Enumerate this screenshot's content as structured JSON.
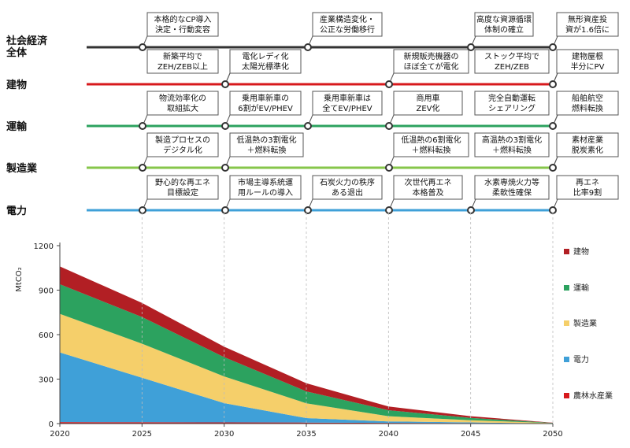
{
  "roadmap": {
    "sectors": [
      {
        "label": "社会経済\n全体",
        "color": "#333333"
      },
      {
        "label": "建物",
        "color": "#d7191c"
      },
      {
        "label": "運輸",
        "color": "#2ca25f"
      },
      {
        "label": "製造業",
        "color": "#86c64a"
      },
      {
        "label": "電力",
        "color": "#3fa0d8"
      }
    ],
    "milestones": [
      {
        "sector": 0,
        "lines": [
          "本格的なCP導入",
          "決定・行動変容"
        ]
      },
      {
        "sector": 0,
        "lines": [
          "産業構造変化・",
          "公正な労働移行"
        ]
      },
      {
        "sector": 0,
        "lines": [
          "高度な資源循環",
          "体制の確立"
        ]
      },
      {
        "sector": 0,
        "lines": [
          "無形資産投",
          "資が1.6倍に"
        ]
      },
      {
        "sector": 1,
        "lines": [
          "新築平均で",
          "ZEH/ZEB以上"
        ]
      },
      {
        "sector": 1,
        "lines": [
          "電化レディ化",
          "太陽光標準化"
        ]
      },
      {
        "sector": 1,
        "lines": [
          "新規販売機器の",
          "ほぼ全てが電化"
        ]
      },
      {
        "sector": 1,
        "lines": [
          "ストック平均で",
          "ZEH/ZEB"
        ]
      },
      {
        "sector": 1,
        "lines": [
          "建物屋根",
          "半分にPV"
        ]
      },
      {
        "sector": 2,
        "lines": [
          "物流効率化の",
          "取組拡大"
        ]
      },
      {
        "sector": 2,
        "lines": [
          "乗用車新車の",
          "6割がEV/PHEV"
        ]
      },
      {
        "sector": 2,
        "lines": [
          "乗用車新車は",
          "全てEV/PHEV"
        ]
      },
      {
        "sector": 2,
        "lines": [
          "商用車",
          "ZEV化"
        ]
      },
      {
        "sector": 2,
        "lines": [
          "完全自動運転",
          "シェアリング"
        ]
      },
      {
        "sector": 2,
        "lines": [
          "船舶航空",
          "燃料転換"
        ]
      },
      {
        "sector": 3,
        "lines": [
          "製造プロセスの",
          "デジタル化"
        ]
      },
      {
        "sector": 3,
        "lines": [
          "低温熱の3割電化",
          "＋燃料転換"
        ]
      },
      {
        "sector": 3,
        "lines": [
          "低温熱の6割電化",
          "＋燃料転換"
        ]
      },
      {
        "sector": 3,
        "lines": [
          "高温熱の3割電化",
          "＋燃料転換"
        ]
      },
      {
        "sector": 3,
        "lines": [
          "素材産業",
          "脱炭素化"
        ]
      },
      {
        "sector": 4,
        "lines": [
          "野心的な再エネ",
          "目標設定"
        ]
      },
      {
        "sector": 4,
        "lines": [
          "市場主導系統運",
          "用ルールの導入"
        ]
      },
      {
        "sector": 4,
        "lines": [
          "石炭火力の秩序",
          "ある退出"
        ]
      },
      {
        "sector": 4,
        "lines": [
          "次世代再エネ",
          "本格普及"
        ]
      },
      {
        "sector": 4,
        "lines": [
          "水素専焼火力等",
          "柔軟性確保"
        ]
      },
      {
        "sector": 4,
        "lines": [
          "再エネ",
          "比率9割"
        ]
      }
    ]
  },
  "chart_data": {
    "type": "area",
    "stacked": true,
    "ylabel": "MtCO₂",
    "ylim": [
      0,
      1200
    ],
    "yticks": [
      0,
      300,
      600,
      900,
      1200
    ],
    "xlim": [
      2020,
      2050
    ],
    "xticks": [
      2020,
      2025,
      2030,
      2035,
      2040,
      2045,
      2050
    ],
    "x": [
      2020,
      2025,
      2030,
      2035,
      2040,
      2045,
      2050
    ],
    "series": [
      {
        "name": "農林水産業",
        "color": "#d7191c",
        "values": [
          10,
          9,
          8,
          7,
          5,
          3,
          1
        ]
      },
      {
        "name": "電力",
        "color": "#3fa0d8",
        "values": [
          470,
          300,
          130,
          30,
          10,
          5,
          0
        ]
      },
      {
        "name": "製造業",
        "color": "#f5cf6a",
        "values": [
          260,
          230,
          180,
          100,
          35,
          15,
          2
        ]
      },
      {
        "name": "運輸",
        "color": "#2ca25f",
        "values": [
          200,
          180,
          130,
          80,
          40,
          15,
          2
        ]
      },
      {
        "name": "建物",
        "color": "#b21f24",
        "values": [
          120,
          95,
          70,
          55,
          25,
          12,
          1
        ]
      }
    ],
    "legend_order": [
      "建物",
      "運輸",
      "製造業",
      "電力",
      "農林水産業"
    ],
    "legend_position": "right"
  }
}
